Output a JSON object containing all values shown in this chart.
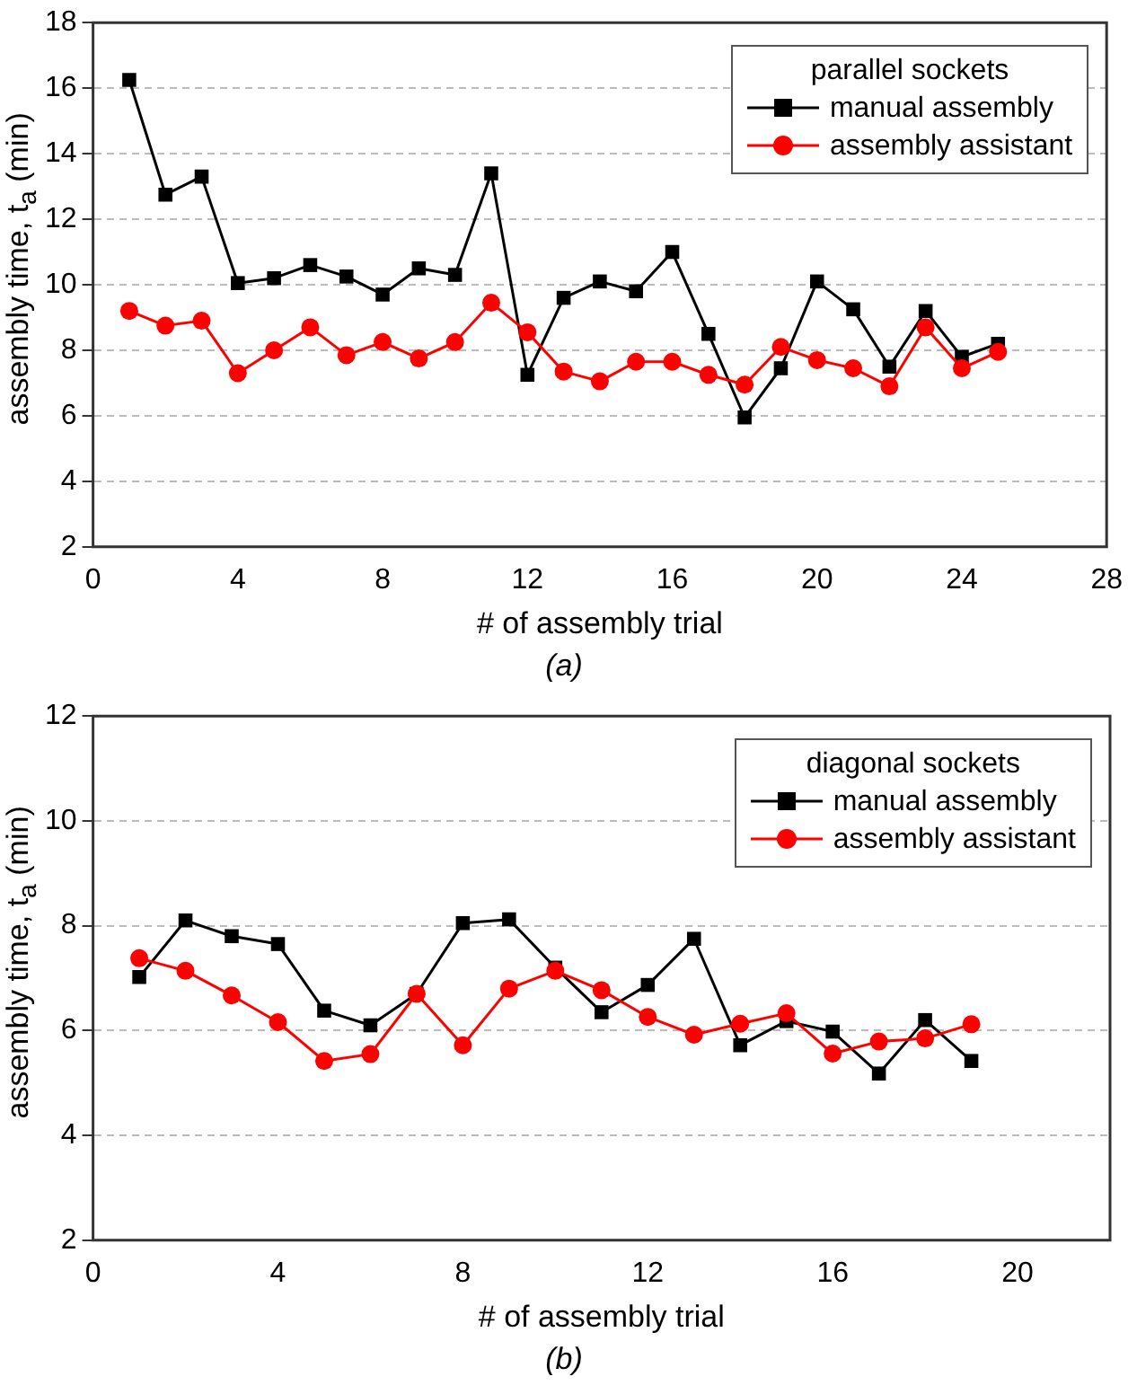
{
  "chart_data": [
    {
      "type": "line",
      "xlabel": "# of assembly trial",
      "ylabel": "assembly time, t$_{a}$ (min)",
      "legend_title": "parallel sockets",
      "legend": "top right",
      "grid": "y",
      "x": [
        1,
        2,
        3,
        4,
        5,
        6,
        7,
        8,
        9,
        10,
        11,
        12,
        13,
        14,
        15,
        16,
        17,
        18,
        19,
        20,
        21,
        22,
        23,
        24,
        25
      ],
      "xlim": [
        0,
        28
      ],
      "xticks": [
        0,
        4,
        8,
        12,
        16,
        20,
        24,
        28
      ],
      "ylim": [
        2,
        18
      ],
      "yticks": [
        2,
        4,
        6,
        8,
        10,
        12,
        14,
        16,
        18
      ],
      "series": [
        {
          "name": "manual assembly",
          "color": "#000000",
          "marker": "square",
          "values": [
            16.25,
            12.75,
            13.3,
            10.05,
            10.2,
            10.6,
            10.25,
            9.7,
            10.5,
            10.3,
            13.4,
            7.25,
            9.6,
            10.1,
            9.8,
            11.0,
            8.5,
            5.95,
            7.45,
            10.1,
            9.25,
            7.5,
            9.2,
            7.8,
            8.2
          ]
        },
        {
          "name": "assembly assistant",
          "color": "#ff0000",
          "marker": "circle",
          "values": [
            9.2,
            8.75,
            8.9,
            7.3,
            8.0,
            8.7,
            7.85,
            8.25,
            7.75,
            8.25,
            9.45,
            8.55,
            7.35,
            7.05,
            7.65,
            7.65,
            7.25,
            6.95,
            8.1,
            7.7,
            7.45,
            6.9,
            8.7,
            7.45,
            7.95
          ]
        }
      ],
      "annotations": [
        "(a)"
      ]
    },
    {
      "type": "line",
      "xlabel": "# of assembly trial",
      "ylabel": "assembly time, t$_{a}$ (min)",
      "legend_title": "diagonal sockets",
      "legend": "top right",
      "grid": "y",
      "x": [
        1,
        2,
        3,
        4,
        5,
        6,
        7,
        8,
        9,
        10,
        11,
        12,
        13,
        14,
        15,
        16,
        17,
        18,
        19
      ],
      "xlim": [
        0,
        22
      ],
      "xticks": [
        0,
        4,
        8,
        12,
        16,
        20
      ],
      "ylim": [
        2,
        12
      ],
      "yticks": [
        2,
        4,
        6,
        8,
        10,
        12
      ],
      "series": [
        {
          "name": "manual assembly",
          "color": "#000000",
          "marker": "square",
          "values": [
            7.02,
            8.1,
            7.8,
            7.65,
            6.38,
            6.1,
            6.7,
            8.05,
            8.12,
            7.2,
            6.35,
            6.87,
            7.75,
            5.72,
            6.18,
            5.98,
            5.18,
            6.2,
            5.42
          ]
        },
        {
          "name": "assembly assistant",
          "color": "#ff0000",
          "marker": "circle",
          "values": [
            7.38,
            7.14,
            6.67,
            6.16,
            5.42,
            5.55,
            6.7,
            5.72,
            6.8,
            7.14,
            6.77,
            6.26,
            5.92,
            6.13,
            6.33,
            5.56,
            5.79,
            5.85,
            6.12
          ]
        }
      ],
      "annotations": [
        "(b)"
      ]
    }
  ]
}
